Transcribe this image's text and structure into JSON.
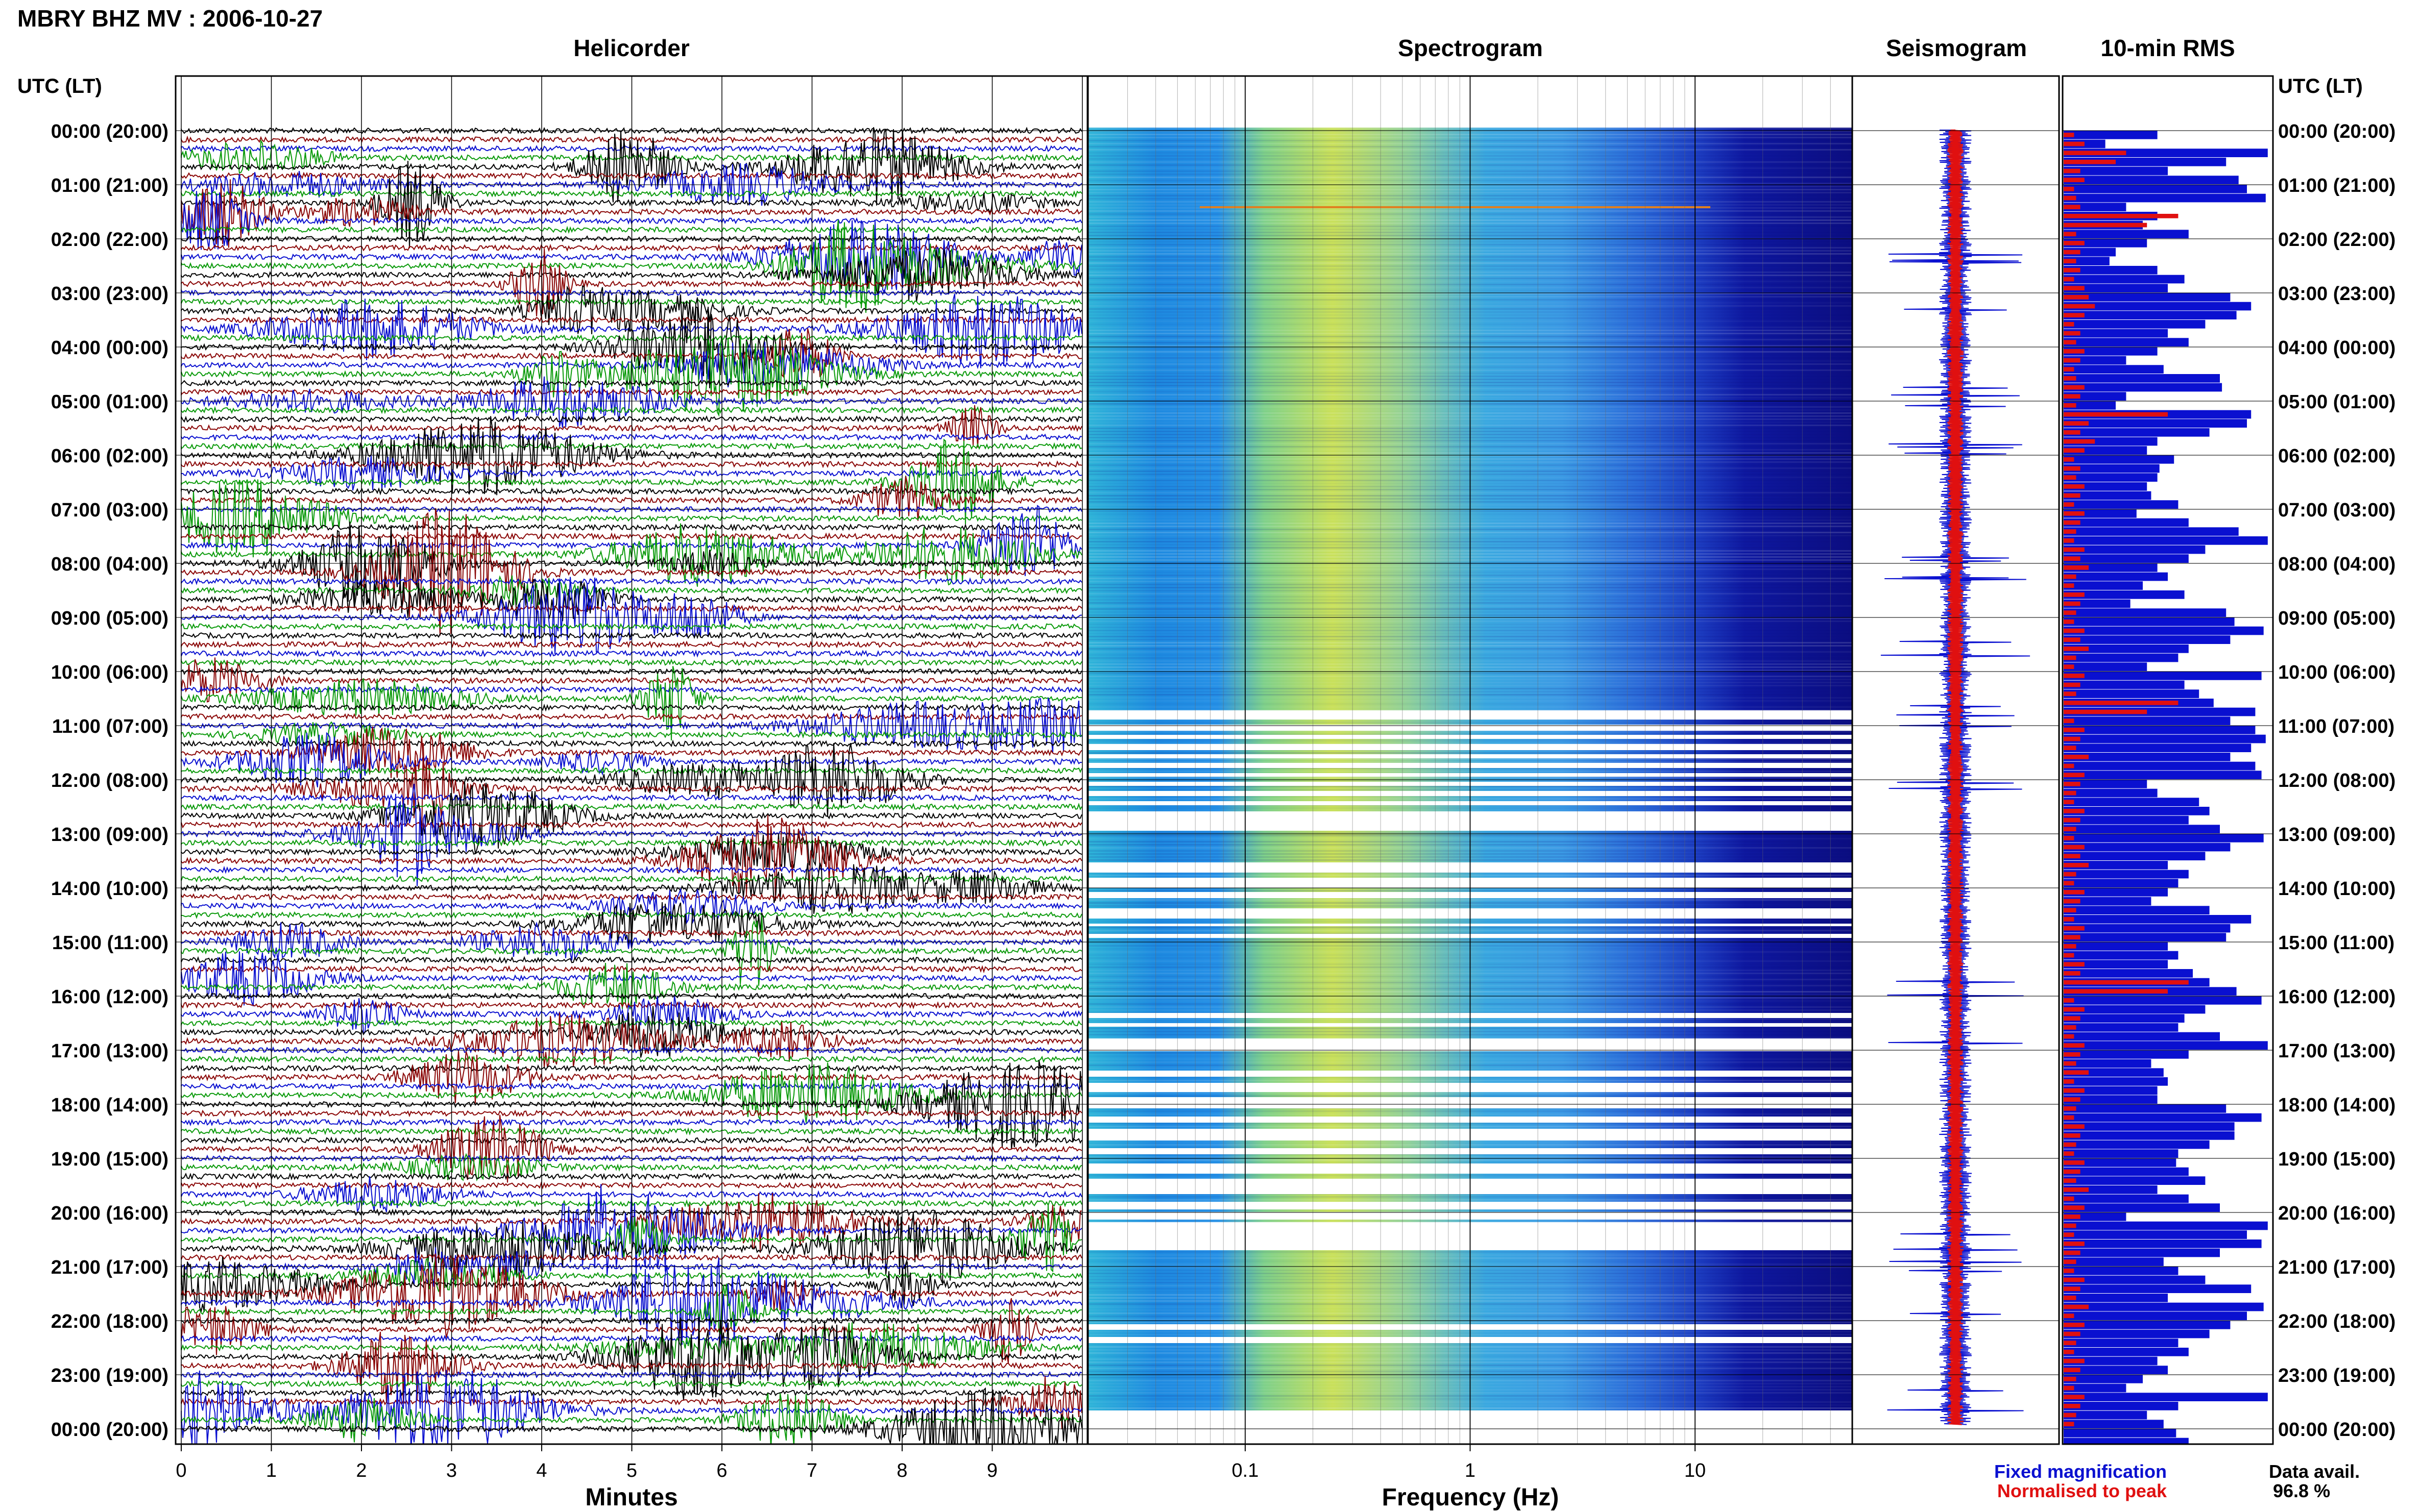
{
  "page": {
    "title": "MBRY BHZ MV : 2006-10-27",
    "panel_titles": {
      "helicorder": "Helicorder",
      "spectrogram": "Spectrogram",
      "seismogram": "Seismogram",
      "rms": "10-min RMS"
    },
    "axis_header_left": "UTC (LT)",
    "axis_header_right": "UTC (LT)",
    "xlabel_helicorder": "Minutes",
    "xlabel_spectrogram": "Frequency (Hz)",
    "legend": {
      "fixed": "Fixed magnification",
      "normalised": "Normalised to peak"
    },
    "data_avail_label": "Data avail.",
    "data_avail_value": "96.8 %",
    "colors": {
      "blue": "#0a10d0",
      "red": "#e01010",
      "green": "#0a9a0a",
      "darkred": "#8a0606",
      "black": "#000000",
      "spectrogram_bg": "#0b0d80"
    }
  },
  "chart_data": {
    "type": "heatmap",
    "time_labels": [
      "00:00 (20:00)",
      "01:00 (21:00)",
      "02:00 (22:00)",
      "03:00 (23:00)",
      "04:00 (00:00)",
      "05:00 (01:00)",
      "06:00 (02:00)",
      "07:00 (03:00)",
      "08:00 (04:00)",
      "09:00 (05:00)",
      "10:00 (06:00)",
      "11:00 (07:00)",
      "12:00 (08:00)",
      "13:00 (09:00)",
      "14:00 (10:00)",
      "15:00 (11:00)",
      "16:00 (12:00)",
      "17:00 (13:00)",
      "18:00 (14:00)",
      "19:00 (15:00)",
      "20:00 (16:00)",
      "21:00 (17:00)",
      "22:00 (18:00)",
      "23:00 (19:00)",
      "00:00 (20:00)"
    ],
    "helicorder_x_ticks": [
      "0",
      "1",
      "2",
      "3",
      "4",
      "5",
      "6",
      "7",
      "8",
      "9"
    ],
    "helicorder_xlim": [
      0,
      10
    ],
    "spectrogram_x_ticks": [
      "0.1",
      "1",
      "10"
    ],
    "spectrogram_xlim": [
      0.02,
      50
    ],
    "xscale_spectrogram": "log",
    "helicorder_trace_colors": [
      "black",
      "darkred",
      "blue",
      "green"
    ],
    "rms_10min_fixed": [
      0.45,
      0.2,
      0.98,
      0.78,
      0.5,
      0.84,
      0.88,
      0.97,
      0.3,
      0.45,
      0.38,
      0.6,
      0.4,
      0.25,
      0.22,
      0.45,
      0.58,
      0.5,
      0.8,
      0.9,
      0.83,
      0.68,
      0.5,
      0.6,
      0.45,
      0.3,
      0.48,
      0.75,
      0.76,
      0.3,
      0.25,
      0.9,
      0.88,
      0.7,
      0.45,
      0.4,
      0.53,
      0.46,
      0.45,
      0.4,
      0.42,
      0.55,
      0.35,
      0.6,
      0.84,
      0.98,
      0.68,
      0.6,
      0.45,
      0.5,
      0.38,
      0.58,
      0.32,
      0.78,
      0.82,
      0.96,
      0.8,
      0.6,
      0.55,
      0.4,
      0.95,
      0.58,
      0.65,
      0.72,
      0.92,
      0.8,
      0.92,
      0.97,
      0.9,
      0.8,
      0.92,
      0.95,
      0.4,
      0.45,
      0.65,
      0.7,
      0.6,
      0.75,
      0.96,
      0.8,
      0.68,
      0.5,
      0.6,
      0.55,
      0.5,
      0.42,
      0.7,
      0.9,
      0.8,
      0.78,
      0.5,
      0.55,
      0.5,
      0.62,
      0.7,
      0.83,
      0.95,
      0.68,
      0.58,
      0.55,
      0.75,
      0.98,
      0.6,
      0.42,
      0.48,
      0.5,
      0.45,
      0.45,
      0.78,
      0.95,
      0.82,
      0.82,
      0.7,
      0.55,
      0.54,
      0.6,
      0.68,
      0.45,
      0.6,
      0.75,
      0.3,
      0.98,
      0.88,
      0.95,
      0.75,
      0.48,
      0.55,
      0.68,
      0.9,
      0.5,
      0.96,
      0.88,
      0.8,
      0.7,
      0.55,
      0.6,
      0.45,
      0.5,
      0.38,
      0.3,
      0.98,
      0.55,
      0.4,
      0.48,
      0.54,
      0.6,
      0.45,
      0.8
    ],
    "rms_10min_normalised": [
      0.05,
      0.1,
      0.3,
      0.25,
      0.08,
      0.1,
      0.05,
      0.06,
      0.08,
      0.55,
      0.4,
      0.06,
      0.1,
      0.08,
      0.06,
      0.08,
      0.05,
      0.1,
      0.12,
      0.15,
      0.1,
      0.05,
      0.08,
      0.06,
      0.1,
      0.08,
      0.05,
      0.06,
      0.1,
      0.08,
      0.06,
      0.5,
      0.12,
      0.08,
      0.15,
      0.1,
      0.05,
      0.08,
      0.06,
      0.1,
      0.08,
      0.05,
      0.1,
      0.08,
      0.06,
      0.05,
      0.1,
      0.08,
      0.12,
      0.06,
      0.05,
      0.1,
      0.08,
      0.06,
      0.05,
      0.1,
      0.08,
      0.12,
      0.06,
      0.05,
      0.1,
      0.08,
      0.06,
      0.55,
      0.4,
      0.05,
      0.1,
      0.08,
      0.06,
      0.12,
      0.05,
      0.1,
      0.08,
      0.06,
      0.05,
      0.1,
      0.08,
      0.06,
      0.05,
      0.1,
      0.08,
      0.12,
      0.06,
      0.05,
      0.1,
      0.08,
      0.06,
      0.05,
      0.1,
      0.08,
      0.06,
      0.05,
      0.1,
      0.08,
      0.6,
      0.5,
      0.05,
      0.1,
      0.08,
      0.06,
      0.05,
      0.1,
      0.08,
      0.06,
      0.12,
      0.05,
      0.1,
      0.08,
      0.06,
      0.05,
      0.1,
      0.08,
      0.06,
      0.05,
      0.1,
      0.08,
      0.06,
      0.12,
      0.05,
      0.1,
      0.08,
      0.06,
      0.05,
      0.1,
      0.08,
      0.06,
      0.05,
      0.1,
      0.08,
      0.06,
      0.12,
      0.05,
      0.1,
      0.08,
      0.06,
      0.05,
      0.1,
      0.08,
      0.06,
      0.05,
      0.1,
      0.08,
      0.06,
      0.05
    ],
    "rms_10min_fixed_scale_label_free": true
  }
}
